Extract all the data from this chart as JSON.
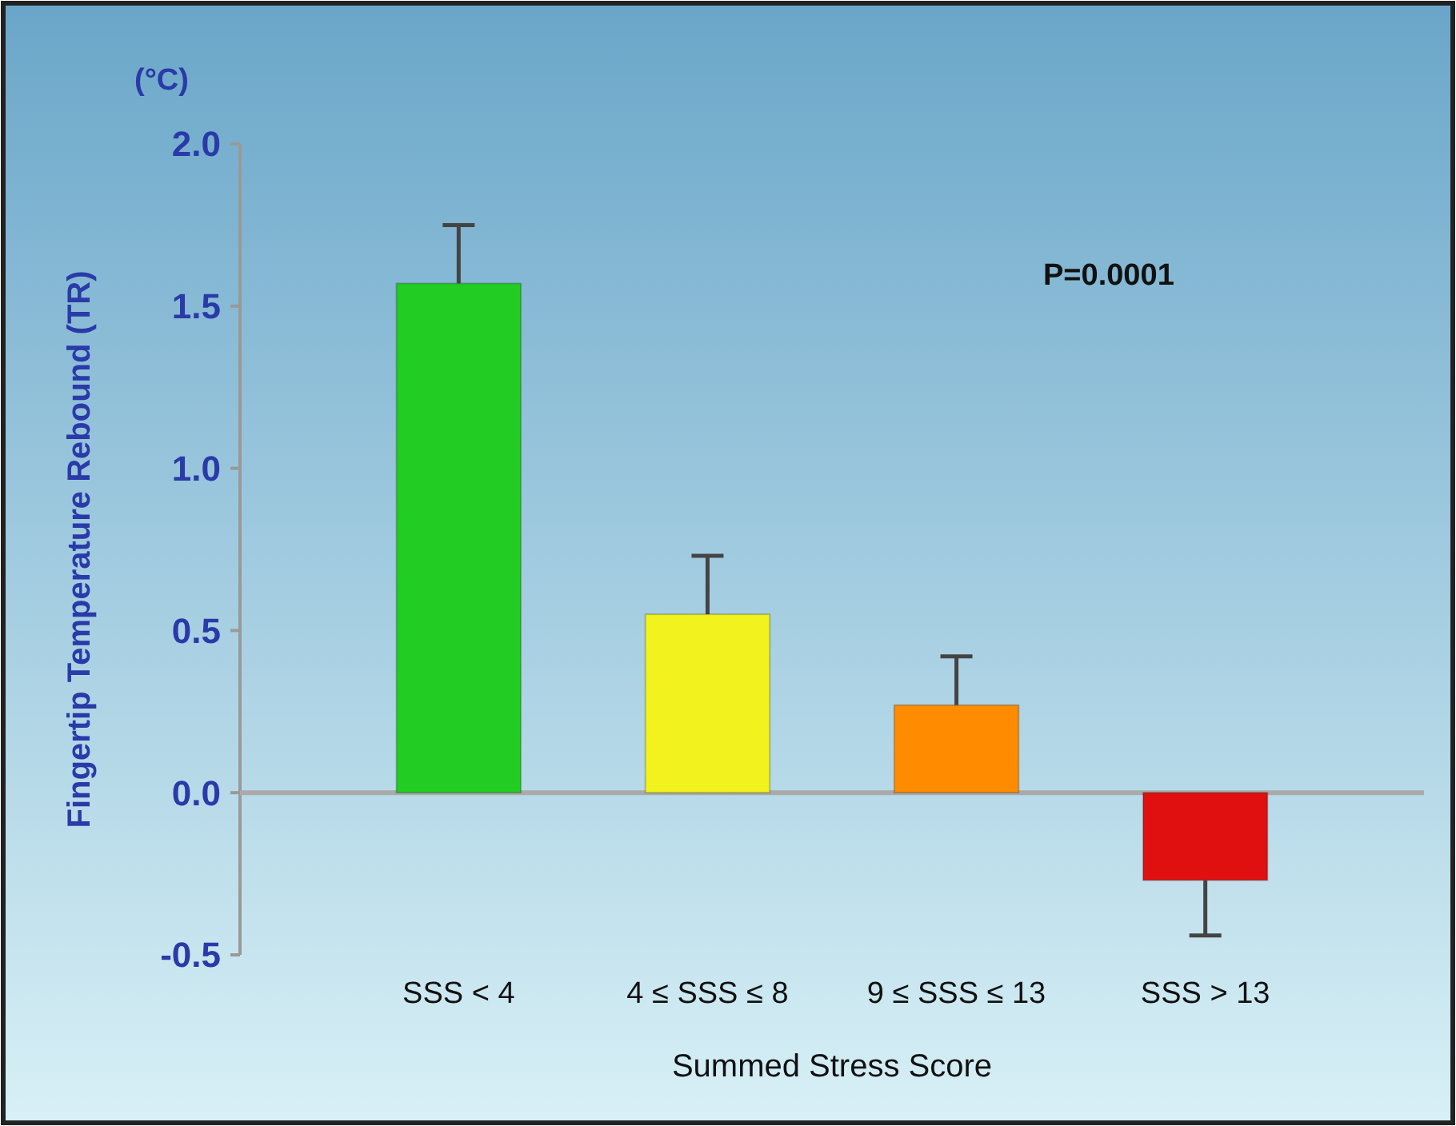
{
  "chart_data": {
    "type": "bar",
    "xlabel": "Summed Stress Score",
    "ylabel": "Fingertip Temperature Rebound (TR)",
    "annotations": [
      "(°C)",
      "P=0.0001"
    ],
    "categories": [
      "SSS < 4",
      "4 ≤ SSS ≤ 8",
      "9 ≤ SSS ≤ 13",
      "SSS > 13"
    ],
    "values": [
      1.57,
      0.55,
      0.27,
      -0.27
    ],
    "colors": [
      "#22cc22",
      "#f2f21e",
      "#ff8c00",
      "#e01010"
    ],
    "errors": [
      [
        1.57,
        1.75
      ],
      [
        0.55,
        0.73
      ],
      [
        0.27,
        0.42
      ],
      [
        -0.44,
        -0.27
      ]
    ],
    "ylim": [
      -0.5,
      2.0
    ],
    "yticks": [
      {
        "value": -0.5,
        "label": "-0.5"
      },
      {
        "value": 0,
        "label": "0.0"
      },
      {
        "value": 0.5,
        "label": "0.5"
      },
      {
        "value": 1,
        "label": "1.0"
      },
      {
        "value": 1.5,
        "label": "1.5"
      },
      {
        "value": 2,
        "label": "2.0"
      }
    ],
    "tick_labels": true
  }
}
